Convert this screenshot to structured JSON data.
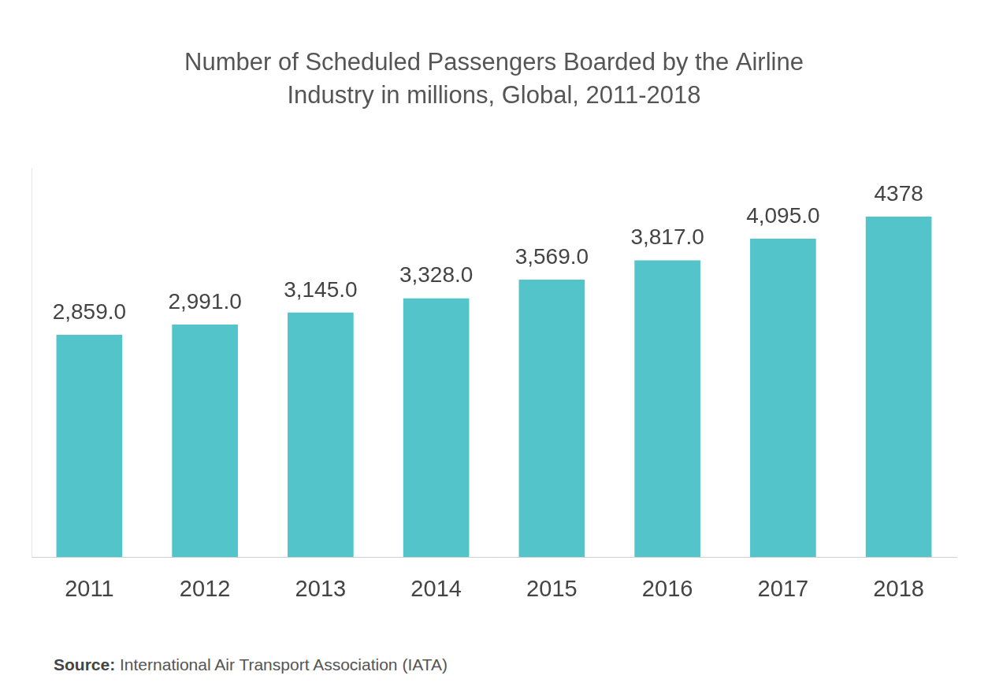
{
  "chart_data": {
    "type": "bar",
    "title": [
      "Number of Scheduled Passengers Boarded by the Airline",
      "Industry in millions, Global, 2011-2018"
    ],
    "categories": [
      "2011",
      "2012",
      "2013",
      "2014",
      "2015",
      "2016",
      "2017",
      "2018"
    ],
    "values": [
      2859,
      2991,
      3145,
      3328,
      3569,
      3817,
      4095,
      4378
    ],
    "value_labels": [
      "2,859.0",
      "2,991.0",
      "3,145.0",
      "3,328.0",
      "3,569.0",
      "3,817.0",
      "4,095.0",
      "4378"
    ],
    "color": "#52c4ca",
    "ylim": [
      0,
      5000
    ],
    "grid": false,
    "data_labels": true,
    "tick_labels": "x",
    "source": "Source: International Air Transport Association (IATA)"
  }
}
